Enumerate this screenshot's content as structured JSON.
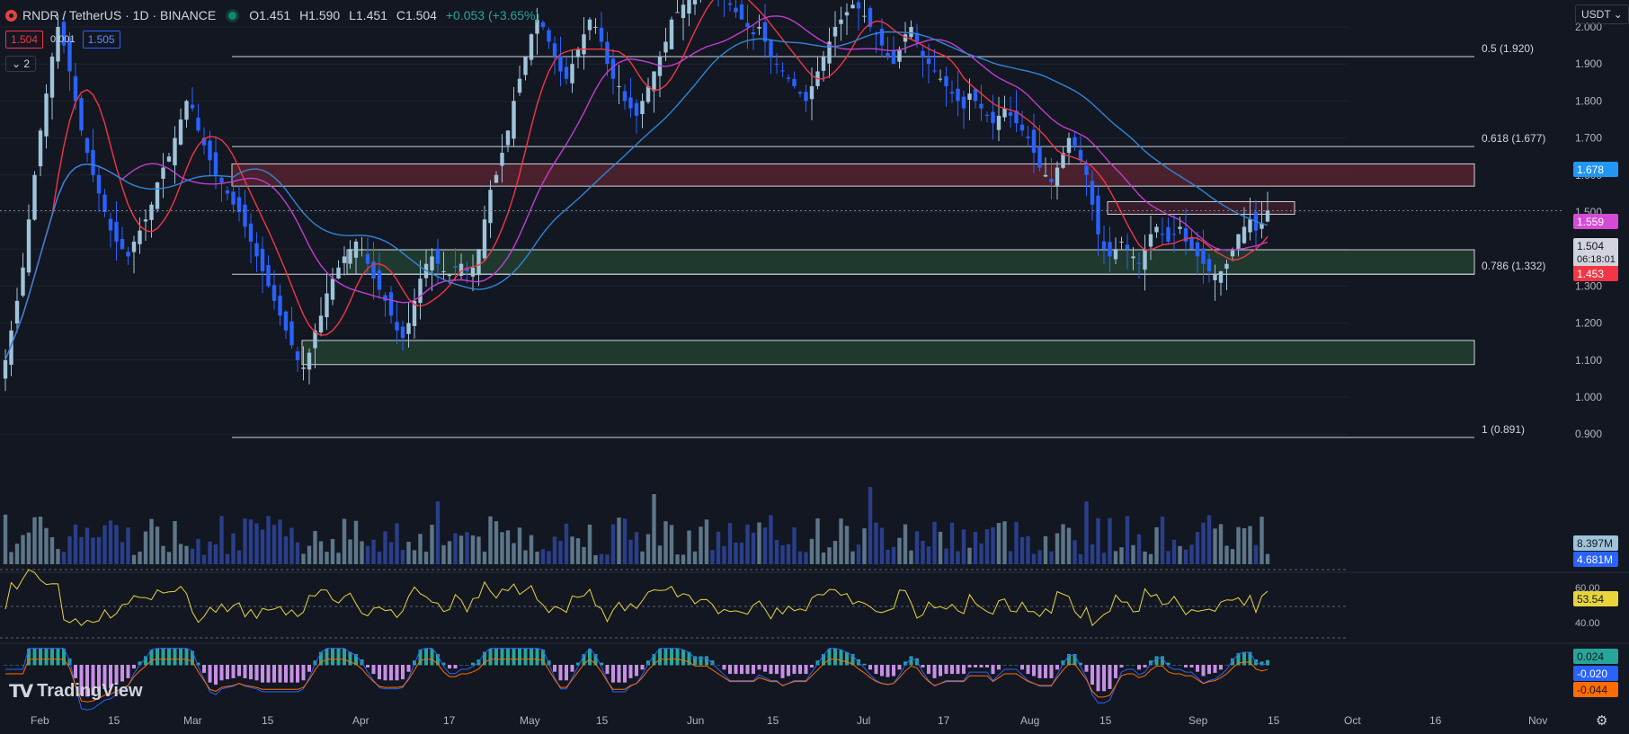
{
  "header": {
    "symbol": "RNDR / TetherUS · 1D · BINANCE",
    "open": "O1.451",
    "high": "H1.590",
    "low": "L1.451",
    "close": "C1.504",
    "change": "+0.053 (+3.65%)",
    "bid": "1.504",
    "spread": "0.001",
    "ask": "1.505",
    "indicators_collapsed": "2",
    "currency": "USDT"
  },
  "brand": "TradingView",
  "colors": {
    "up": "#9fc4d9",
    "down": "#2962ff",
    "ma_fast": "#f23645",
    "ma_mid": "#c03ed0",
    "ma_slow": "#2f86d6",
    "rsi": "#e9d43a",
    "macd": "#2962ff",
    "signal": "#ff6d00"
  },
  "chart_data": {
    "type": "candlestick",
    "y_axis": {
      "min": 0.85,
      "max": 2.02,
      "ticks": [
        "2.000",
        "1.900",
        "1.800",
        "1.700",
        "1.600",
        "1.500",
        "1.400",
        "1.300",
        "1.200",
        "1.100",
        "1.000",
        "0.900"
      ]
    },
    "x_axis_labels": [
      "Feb",
      "15",
      "Mar",
      "15",
      "Apr",
      "17",
      "May",
      "15",
      "Jun",
      "15",
      "Jul",
      "17",
      "Aug",
      "15",
      "Sep",
      "15",
      "Oct",
      "16",
      "Nov"
    ],
    "fib_levels": [
      {
        "label": "0.5 (1.920)",
        "value": 1.92
      },
      {
        "label": "0.618 (1.677)",
        "value": 1.677
      },
      {
        "label": "0.786 (1.332)",
        "value": 1.332
      },
      {
        "label": "1 (0.891)",
        "value": 0.891
      }
    ],
    "zones": [
      {
        "kind": "resistance",
        "from": 1.57,
        "to": 1.63
      },
      {
        "kind": "resistance",
        "from": 1.494,
        "to": 1.528
      },
      {
        "kind": "support",
        "from": 1.332,
        "to": 1.398
      },
      {
        "kind": "support",
        "from": 1.088,
        "to": 1.153
      }
    ],
    "price_labels": [
      {
        "text": "1.678",
        "series": "MA slow"
      },
      {
        "text": "1.559",
        "series": "MA mid"
      },
      {
        "text": "1.504",
        "series": "Last price"
      },
      {
        "text": "06:18:01",
        "series": "Countdown"
      },
      {
        "text": "1.453",
        "series": "MA fast"
      }
    ],
    "volume_labels": [
      "8.397M",
      "4.681M"
    ],
    "rsi": {
      "value": "53.54",
      "ticks": [
        "60.00",
        "40.00"
      ]
    },
    "macd": {
      "histogram": "0.024",
      "macd": "-0.020",
      "signal": "-0.044"
    },
    "close_series": [
      1.1,
      1.18,
      1.26,
      1.35,
      1.48,
      1.6,
      1.72,
      1.82,
      1.92,
      2.0,
      1.95,
      1.88,
      1.8,
      1.72,
      1.66,
      1.6,
      1.55,
      1.5,
      1.45,
      1.42,
      1.4,
      1.38,
      1.42,
      1.45,
      1.48,
      1.52,
      1.58,
      1.62,
      1.65,
      1.7,
      1.75,
      1.8,
      1.78,
      1.72,
      1.68,
      1.64,
      1.6,
      1.58,
      1.55,
      1.52,
      1.5,
      1.46,
      1.42,
      1.38,
      1.34,
      1.3,
      1.26,
      1.22,
      1.18,
      1.14,
      1.1,
      1.08,
      1.12,
      1.18,
      1.22,
      1.28,
      1.32,
      1.35,
      1.38,
      1.4,
      1.42,
      1.4,
      1.36,
      1.32,
      1.29,
      1.26,
      1.22,
      1.18,
      1.16,
      1.2,
      1.26,
      1.32,
      1.36,
      1.38,
      1.36,
      1.34,
      1.33,
      1.35,
      1.36,
      1.34,
      1.35,
      1.4,
      1.48,
      1.56,
      1.6,
      1.66,
      1.72,
      1.8,
      1.86,
      1.92,
      1.98,
      2.02,
      2.0,
      1.96,
      1.92,
      1.88,
      1.86,
      1.9,
      1.94,
      1.98,
      2.02,
      2.0,
      1.96,
      1.9,
      1.86,
      1.84,
      1.8,
      1.78,
      1.76,
      1.8,
      1.84,
      1.88,
      1.92,
      1.96,
      2.02,
      2.04,
      2.06,
      2.08,
      2.1,
      2.12,
      2.14,
      2.12,
      2.1,
      2.08,
      2.06,
      2.04,
      2.02,
      2.0,
      1.98,
      2.0,
      1.96,
      1.92,
      1.9,
      1.88,
      1.86,
      1.84,
      1.82,
      1.8,
      1.84,
      1.88,
      1.92,
      1.96,
      2.0,
      2.02,
      2.04,
      2.06,
      2.05,
      2.03,
      2.0,
      1.98,
      1.95,
      1.92,
      1.9,
      1.94,
      1.98,
      2.0,
      1.96,
      1.92,
      1.9,
      1.88,
      1.86,
      1.84,
      1.82,
      1.8,
      1.78,
      1.82,
      1.8,
      1.78,
      1.76,
      1.74,
      1.76,
      1.78,
      1.76,
      1.74,
      1.72,
      1.7,
      1.66,
      1.62,
      1.6,
      1.58,
      1.62,
      1.66,
      1.7,
      1.68,
      1.64,
      1.6,
      1.52,
      1.44,
      1.4,
      1.38,
      1.4,
      1.42,
      1.4,
      1.38,
      1.36,
      1.4,
      1.44,
      1.46,
      1.44,
      1.42,
      1.44,
      1.46,
      1.42,
      1.4,
      1.38,
      1.36,
      1.34,
      1.33,
      1.34,
      1.36,
      1.4,
      1.44,
      1.46,
      1.48,
      1.45,
      1.47,
      1.504
    ]
  }
}
